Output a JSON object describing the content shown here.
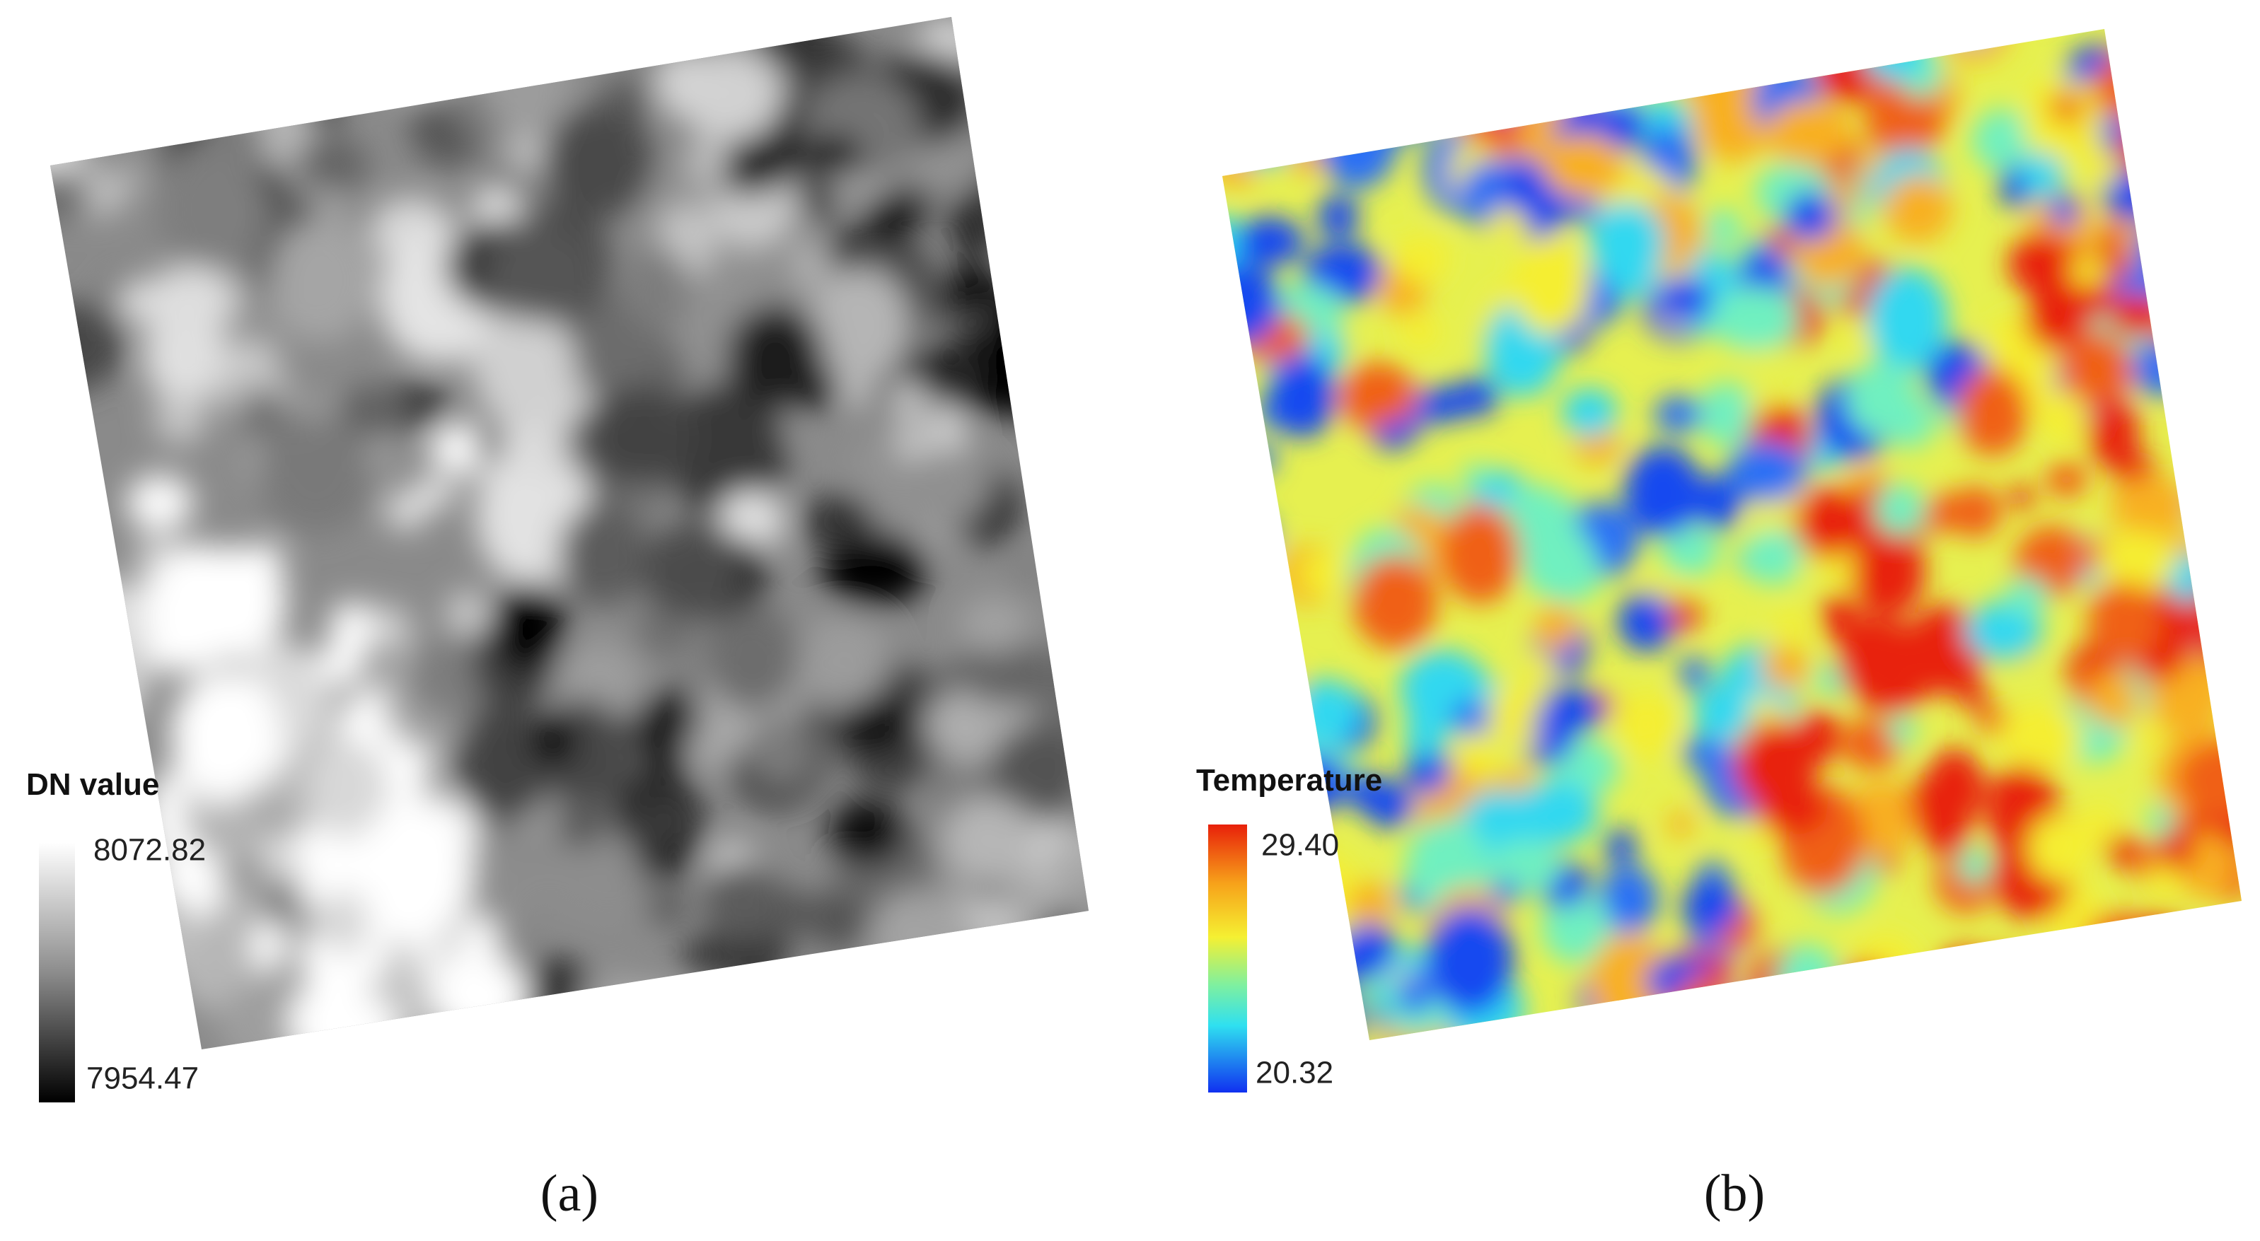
{
  "panels": [
    {
      "legend": {
        "title": "DN value",
        "max": "8072.82",
        "min": "7954.47"
      },
      "caption": "(a)"
    },
    {
      "legend": {
        "title": "Temperature",
        "max": "29.40",
        "min": "20.32"
      },
      "caption": "(b)"
    }
  ]
}
